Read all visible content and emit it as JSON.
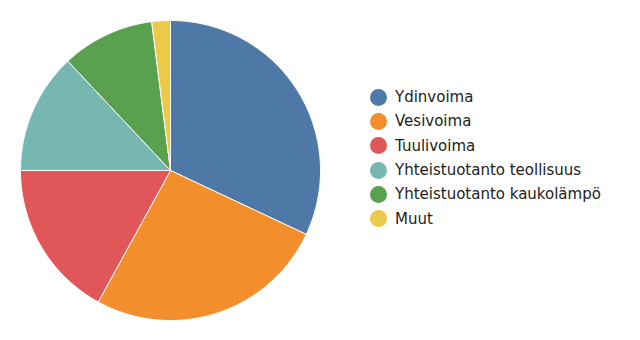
{
  "chart_data": {
    "type": "pie",
    "categories": [
      "Ydinvoima",
      "Vesivoima",
      "Tuulivoima",
      "Yhteistuotanto teollisuus",
      "Yhteistuotanto kaukolämpö",
      "Muut"
    ],
    "values": [
      32,
      26,
      17,
      13,
      10,
      2
    ],
    "colors": [
      "#4e79a7",
      "#f28e2c",
      "#e15759",
      "#76b7b2",
      "#59a14f",
      "#edc949"
    ],
    "legend": "right"
  }
}
